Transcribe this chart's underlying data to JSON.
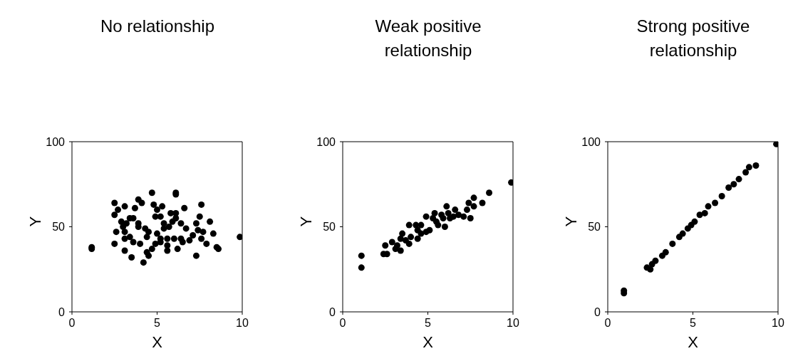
{
  "chart_data": [
    {
      "type": "scatter",
      "title": "No relationship",
      "xlabel": "X",
      "ylabel": "Y",
      "xlim": [
        0,
        10
      ],
      "ylim": [
        0,
        100
      ],
      "xticks": [
        0,
        5,
        10
      ],
      "yticks": [
        0,
        50,
        100
      ],
      "marker": "circle",
      "color": "#000000",
      "x": [
        1.16,
        1.16,
        2.5,
        2.5,
        2.7,
        2.9,
        3.0,
        2.6,
        2.5,
        3.1,
        3.5,
        3.1,
        3.4,
        3.6,
        3.9,
        3.9,
        3.7,
        3.9,
        4.1,
        3.2,
        3.1,
        3.1,
        3.4,
        3.6,
        4.0,
        4.3,
        4.5,
        4.4,
        4.4,
        4.5,
        4.2,
        4.7,
        4.8,
        5.0,
        5.3,
        4.9,
        5.2,
        5.4,
        5.4,
        5.0,
        5.2,
        4.9,
        4.7,
        5.2,
        5.6,
        5.6,
        5.6,
        5.7,
        5.8,
        6.1,
        6.1,
        6.1,
        5.9,
        6.1,
        6.0,
        6.2,
        6.4,
        6.4,
        6.5,
        6.6,
        6.7,
        6.9,
        7.1,
        7.3,
        7.5,
        7.6,
        7.4,
        7.7,
        7.6,
        7.3,
        7.9,
        8.1,
        8.3,
        8.5,
        8.6,
        9.86
      ],
      "values": [
        38,
        37,
        64,
        57,
        60,
        53,
        50,
        47,
        40,
        36,
        32,
        62,
        55,
        55,
        52,
        50,
        61,
        66,
        64,
        52,
        47,
        43,
        44,
        41,
        40,
        49,
        47,
        44,
        35,
        33,
        29,
        70,
        63,
        60,
        62,
        56,
        56,
        52,
        49,
        46,
        43,
        40,
        37,
        41,
        43,
        39,
        36,
        50,
        58,
        58,
        70,
        69,
        53,
        55,
        43,
        37,
        52,
        43,
        41,
        61,
        49,
        42,
        45,
        52,
        56,
        63,
        48,
        47,
        43,
        33,
        40,
        53,
        46,
        38,
        37,
        44
      ]
    },
    {
      "type": "scatter",
      "title": "Weak positive relationship",
      "xlabel": "X",
      "ylabel": "Y",
      "xlim": [
        0,
        10
      ],
      "ylim": [
        0,
        100
      ],
      "xticks": [
        0,
        5,
        10
      ],
      "yticks": [
        0,
        50,
        100
      ],
      "marker": "circle",
      "color": "#000000",
      "x": [
        1.1,
        1.1,
        2.4,
        2.6,
        2.5,
        2.9,
        3.1,
        3.4,
        3.4,
        3.5,
        3.7,
        3.9,
        3.9,
        4.3,
        4.0,
        4.4,
        4.6,
        4.9,
        4.6,
        4.9,
        5.1,
        5.3,
        5.4,
        5.5,
        5.6,
        5.9,
        6.1,
        6.0,
        6.2,
        6.3,
        6.6,
        6.8,
        7.1,
        7.5,
        7.3,
        7.4,
        7.7,
        7.7,
        8.2,
        8.6,
        9.9,
        3.2,
        4.4,
        6.5,
        5.8
      ],
      "values": [
        33,
        26,
        34,
        34,
        39,
        41,
        37,
        36,
        43,
        46,
        42,
        40,
        51,
        51,
        44,
        43,
        46,
        47,
        51,
        56,
        48,
        55,
        58,
        53,
        51,
        55,
        62,
        50,
        58,
        55,
        60,
        57,
        56,
        55,
        60,
        64,
        67,
        62,
        64,
        70,
        76,
        39,
        48,
        56,
        57
      ]
    },
    {
      "type": "scatter",
      "title": "Strong positive relationship",
      "xlabel": "X",
      "ylabel": "Y",
      "xlim": [
        0,
        10
      ],
      "ylim": [
        0,
        100
      ],
      "xticks": [
        0,
        5,
        10
      ],
      "yticks": [
        0,
        50,
        100
      ],
      "marker": "circle",
      "color": "#000000",
      "x": [
        0.95,
        0.95,
        2.3,
        2.5,
        2.6,
        2.8,
        3.2,
        3.4,
        3.8,
        4.2,
        4.4,
        4.7,
        4.9,
        5.1,
        5.4,
        5.7,
        5.9,
        6.3,
        6.7,
        7.1,
        7.4,
        7.7,
        8.1,
        8.3,
        8.7,
        9.9
      ],
      "values": [
        12.5,
        11,
        26,
        25,
        28,
        30,
        33,
        35,
        40,
        44,
        46,
        49,
        51,
        53,
        57,
        58,
        62,
        64,
        68,
        73,
        75,
        78,
        82,
        85,
        86,
        98.6
      ]
    }
  ]
}
